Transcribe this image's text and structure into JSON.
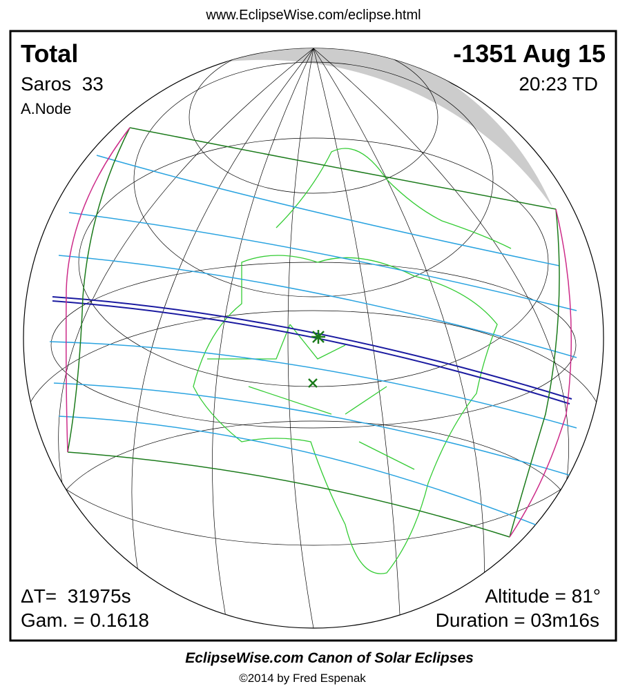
{
  "header": {
    "url": "www.EclipseWise.com/eclipse.html"
  },
  "eclipse": {
    "type": "Total",
    "date": "-1351 Aug 15",
    "saros": "Saros  33",
    "time": "20:23 TD",
    "node": "A.Node",
    "delta_t": "ΔT=  31975s",
    "gamma": "Gam. = 0.1618",
    "altitude": "Altitude = 81°",
    "duration": "Duration = 03m16s"
  },
  "footer": {
    "title": "EclipseWise.com Canon of Solar Eclipses",
    "copyright": "©2014 by Fred Espenak"
  }
}
